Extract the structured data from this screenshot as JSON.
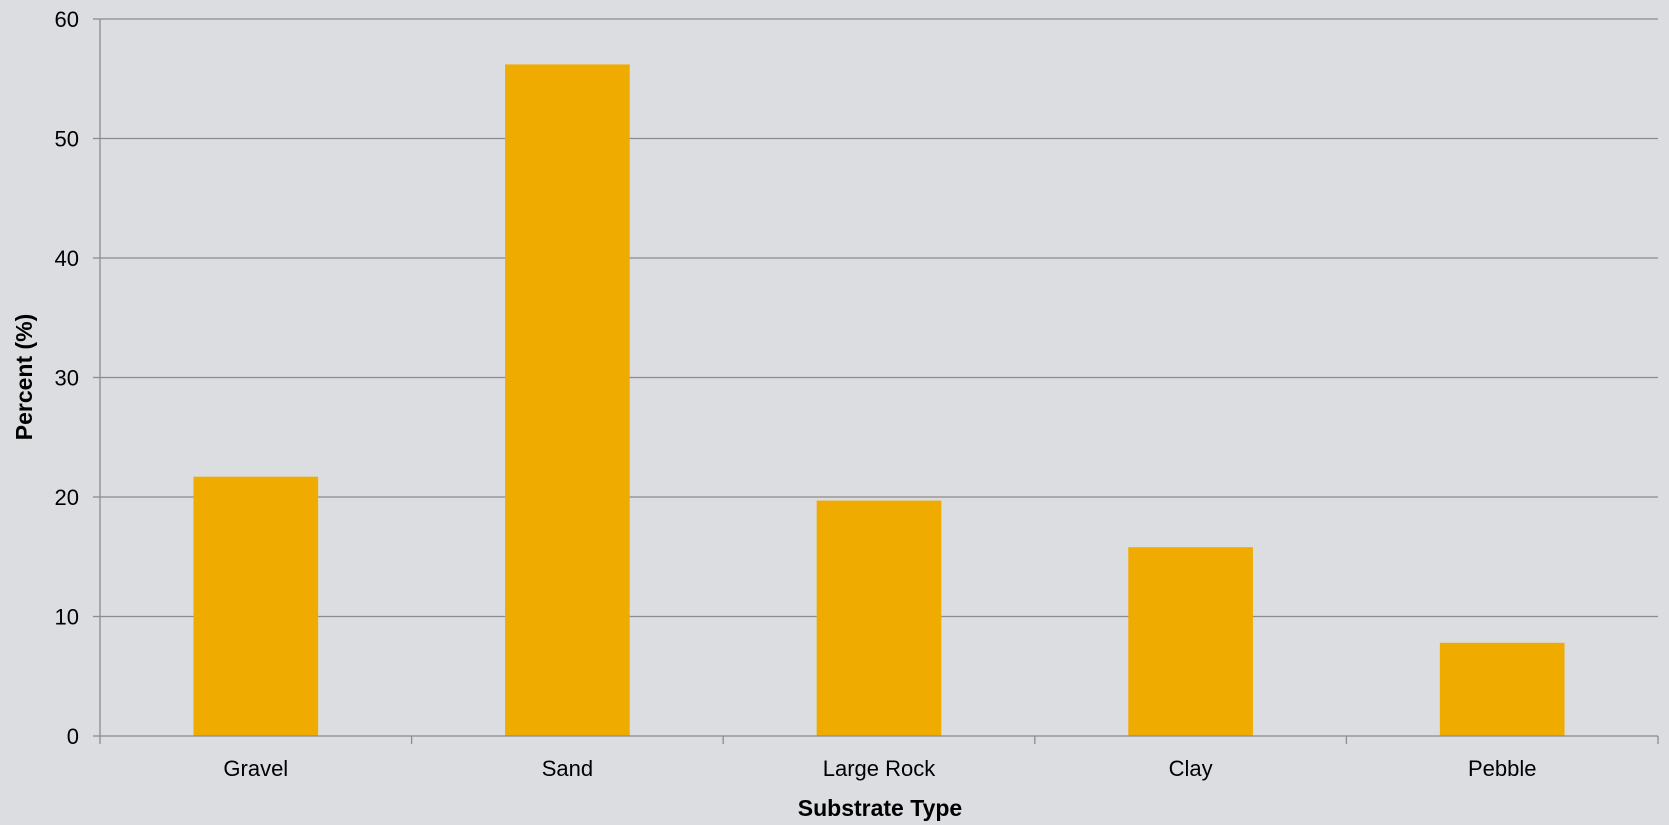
{
  "chart_data": {
    "type": "bar",
    "title": "",
    "xlabel": "Substrate Type",
    "ylabel": "Percent (%)",
    "categories": [
      "Gravel",
      "Sand",
      "Large Rock",
      "Clay",
      "Pebble"
    ],
    "values": [
      21.7,
      56.2,
      19.7,
      15.8,
      7.8
    ],
    "ylim": [
      0,
      60
    ],
    "yticks": [
      "0",
      "10",
      "20",
      "30",
      "40",
      "50",
      "60"
    ],
    "grid": true,
    "legend": "none",
    "colors": {
      "bar": "#f0ab00",
      "background": "#dcdde1",
      "grid": "#8c8c8c",
      "axis": "#8c8c8c"
    }
  }
}
